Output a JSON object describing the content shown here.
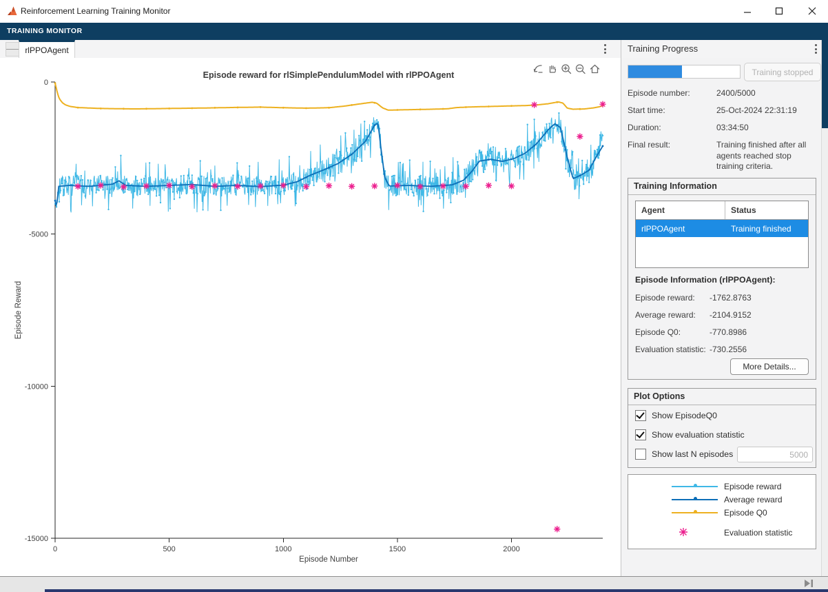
{
  "window": {
    "title": "Reinforcement Learning Training Monitor",
    "icons": {
      "app_logo": "matlab-logo",
      "minimize": "minus",
      "maximize": "square",
      "close": "x"
    }
  },
  "toolstrip": {
    "label": "TRAINING MONITOR"
  },
  "tabs": [
    {
      "label": "rlPPOAgent",
      "active": true
    }
  ],
  "axes_toolbar": [
    "export-icon",
    "pan-hand-icon",
    "zoom-in-icon",
    "zoom-out-icon",
    "restore-view-home-icon"
  ],
  "training_progress": {
    "title": "Training Progress",
    "progress_percent": 48,
    "status_button": "Training stopped",
    "fields": [
      {
        "label": "Episode number:",
        "value": "2400/5000"
      },
      {
        "label": "Start time:",
        "value": "25-Oct-2024 22:31:19"
      },
      {
        "label": "Duration:",
        "value": "03:34:50"
      },
      {
        "label": "Final result:",
        "value": "Training finished after all agents reached stop training criteria."
      }
    ]
  },
  "training_information": {
    "title": "Training Information",
    "table": {
      "columns": [
        "Agent",
        "Status"
      ],
      "rows": [
        {
          "agent": "rlPPOAgent",
          "status": "Training finished",
          "selected": true
        }
      ]
    },
    "episode_info_title": "Episode Information (rlPPOAgent):",
    "fields": [
      {
        "label": "Episode reward:",
        "value": "-1762.8763"
      },
      {
        "label": "Average reward:",
        "value": "-2104.9152"
      },
      {
        "label": "Episode Q0:",
        "value": "-770.8986"
      },
      {
        "label": "Evaluation statistic:",
        "value": "-730.2556"
      }
    ],
    "more_details_button": "More Details..."
  },
  "plot_options": {
    "title": "Plot Options",
    "checkboxes": [
      {
        "label": "Show EpisodeQ0",
        "checked": true
      },
      {
        "label": "Show evaluation statistic",
        "checked": true
      },
      {
        "label": "Show last N episodes",
        "checked": false
      }
    ],
    "last_n_value": "5000"
  },
  "legend": {
    "entries": [
      {
        "label": "Episode reward",
        "marker": "line-dot",
        "color": "#3FB8E6"
      },
      {
        "label": "Average reward",
        "marker": "line-dot",
        "color": "#0D6FB8"
      },
      {
        "label": "Episode Q0",
        "marker": "line-dot",
        "color": "#EDB120"
      },
      {
        "label": "Evaluation statistic",
        "marker": "asterisk",
        "color": "#EC1F8E"
      }
    ]
  },
  "colors": {
    "toolstrip": "#0E3E61",
    "selection_blue": "#1D8CE4",
    "progress_blue": "#2E8BE0",
    "episode_reward": "#3FB8E6",
    "average_reward": "#0D6FB8",
    "episode_q0": "#EDB120",
    "evaluation_statistic": "#EC1F8E"
  },
  "chart_data": {
    "type": "line",
    "title": "Episode reward for rlSimplePendulumModel with rlPPOAgent",
    "xlabel": "Episode Number",
    "ylabel": "Episode Reward",
    "xlim": [
      0,
      2400
    ],
    "ylim": [
      -15000,
      0
    ],
    "xticks": [
      0,
      500,
      1000,
      1500,
      2000
    ],
    "yticks": [
      0,
      -5000,
      -10000,
      -15000
    ],
    "grid": false,
    "legend_position": "separate-panel",
    "series": [
      {
        "name": "Episode reward",
        "type": "noisy-line",
        "color": "#3FB8E6",
        "seed": 7,
        "noise_amplitude": 340,
        "spike_amplitude": 900,
        "last_value": -1762.8763,
        "trend": [
          [
            0,
            -3900
          ],
          [
            6,
            -4100
          ],
          [
            16,
            -3430
          ],
          [
            60,
            -3400
          ],
          [
            150,
            -3430
          ],
          [
            250,
            -3360
          ],
          [
            280,
            -3250
          ],
          [
            310,
            -3400
          ],
          [
            400,
            -3430
          ],
          [
            500,
            -3400
          ],
          [
            600,
            -3370
          ],
          [
            700,
            -3430
          ],
          [
            800,
            -3400
          ],
          [
            900,
            -3440
          ],
          [
            1000,
            -3390
          ],
          [
            1060,
            -3280
          ],
          [
            1120,
            -3060
          ],
          [
            1180,
            -2880
          ],
          [
            1240,
            -2680
          ],
          [
            1300,
            -2380
          ],
          [
            1360,
            -1950
          ],
          [
            1400,
            -1420
          ],
          [
            1415,
            -1350
          ],
          [
            1430,
            -2300
          ],
          [
            1445,
            -3150
          ],
          [
            1465,
            -3420
          ],
          [
            1550,
            -3400
          ],
          [
            1650,
            -3430
          ],
          [
            1740,
            -3380
          ],
          [
            1790,
            -3230
          ],
          [
            1825,
            -2950
          ],
          [
            1860,
            -2600
          ],
          [
            1910,
            -2540
          ],
          [
            1960,
            -2610
          ],
          [
            2010,
            -2520
          ],
          [
            2060,
            -2340
          ],
          [
            2110,
            -2030
          ],
          [
            2160,
            -1580
          ],
          [
            2190,
            -1370
          ],
          [
            2215,
            -1500
          ],
          [
            2245,
            -2500
          ],
          [
            2270,
            -3180
          ],
          [
            2305,
            -3060
          ],
          [
            2340,
            -2900
          ],
          [
            2370,
            -2480
          ],
          [
            2400,
            -1762.8763
          ]
        ]
      },
      {
        "name": "Average reward",
        "type": "line",
        "color": "#0D6FB8",
        "keypoints": [
          [
            0,
            -3900
          ],
          [
            6,
            -4100
          ],
          [
            16,
            -3430
          ],
          [
            60,
            -3400
          ],
          [
            150,
            -3430
          ],
          [
            250,
            -3360
          ],
          [
            280,
            -3250
          ],
          [
            310,
            -3400
          ],
          [
            400,
            -3430
          ],
          [
            500,
            -3400
          ],
          [
            600,
            -3370
          ],
          [
            700,
            -3430
          ],
          [
            800,
            -3400
          ],
          [
            900,
            -3440
          ],
          [
            1000,
            -3390
          ],
          [
            1060,
            -3280
          ],
          [
            1120,
            -3060
          ],
          [
            1180,
            -2880
          ],
          [
            1240,
            -2680
          ],
          [
            1300,
            -2380
          ],
          [
            1360,
            -1950
          ],
          [
            1400,
            -1420
          ],
          [
            1415,
            -1350
          ],
          [
            1430,
            -2300
          ],
          [
            1445,
            -3150
          ],
          [
            1465,
            -3420
          ],
          [
            1550,
            -3400
          ],
          [
            1650,
            -3430
          ],
          [
            1740,
            -3380
          ],
          [
            1790,
            -3230
          ],
          [
            1825,
            -2950
          ],
          [
            1860,
            -2600
          ],
          [
            1910,
            -2540
          ],
          [
            1960,
            -2610
          ],
          [
            2010,
            -2520
          ],
          [
            2060,
            -2340
          ],
          [
            2110,
            -2030
          ],
          [
            2160,
            -1580
          ],
          [
            2190,
            -1370
          ],
          [
            2215,
            -1500
          ],
          [
            2245,
            -2500
          ],
          [
            2270,
            -3180
          ],
          [
            2305,
            -3060
          ],
          [
            2340,
            -2900
          ],
          [
            2370,
            -2480
          ],
          [
            2400,
            -2104.9152
          ]
        ]
      },
      {
        "name": "Episode Q0",
        "type": "line",
        "color": "#EDB120",
        "keypoints": [
          [
            0,
            -40
          ],
          [
            4,
            -160
          ],
          [
            9,
            -330
          ],
          [
            15,
            -480
          ],
          [
            22,
            -590
          ],
          [
            32,
            -680
          ],
          [
            45,
            -750
          ],
          [
            65,
            -800
          ],
          [
            100,
            -840
          ],
          [
            200,
            -870
          ],
          [
            350,
            -885
          ],
          [
            500,
            -870
          ],
          [
            650,
            -855
          ],
          [
            800,
            -835
          ],
          [
            900,
            -825
          ],
          [
            1000,
            -845
          ],
          [
            1100,
            -860
          ],
          [
            1200,
            -845
          ],
          [
            1270,
            -790
          ],
          [
            1340,
            -715
          ],
          [
            1390,
            -665
          ],
          [
            1410,
            -700
          ],
          [
            1435,
            -850
          ],
          [
            1460,
            -925
          ],
          [
            1550,
            -910
          ],
          [
            1650,
            -895
          ],
          [
            1720,
            -880
          ],
          [
            1760,
            -840
          ],
          [
            1820,
            -820
          ],
          [
            1900,
            -805
          ],
          [
            2000,
            -785
          ],
          [
            2060,
            -775
          ],
          [
            2110,
            -755
          ],
          [
            2160,
            -715
          ],
          [
            2205,
            -655
          ],
          [
            2225,
            -690
          ],
          [
            2245,
            -860
          ],
          [
            2270,
            -895
          ],
          [
            2320,
            -885
          ],
          [
            2360,
            -850
          ],
          [
            2385,
            -815
          ],
          [
            2400,
            -770.8986
          ]
        ]
      },
      {
        "name": "Evaluation statistic",
        "type": "scatter-asterisk",
        "color": "#EC1F8E",
        "points": [
          [
            100,
            -3430
          ],
          [
            200,
            -3400
          ],
          [
            300,
            -3450
          ],
          [
            400,
            -3420
          ],
          [
            500,
            -3400
          ],
          [
            600,
            -3440
          ],
          [
            700,
            -3410
          ],
          [
            800,
            -3430
          ],
          [
            900,
            -3420
          ],
          [
            1000,
            -3400
          ],
          [
            1100,
            -3440
          ],
          [
            1200,
            -3410
          ],
          [
            1300,
            -3430
          ],
          [
            1400,
            -3420
          ],
          [
            1500,
            -3400
          ],
          [
            1600,
            -3440
          ],
          [
            1700,
            -3420
          ],
          [
            1800,
            -3430
          ],
          [
            1900,
            -3400
          ],
          [
            2000,
            -3420
          ],
          [
            2100,
            -750
          ],
          [
            2200,
            -14700
          ],
          [
            2300,
            -1790
          ],
          [
            2400,
            -730.2556
          ]
        ]
      }
    ]
  }
}
